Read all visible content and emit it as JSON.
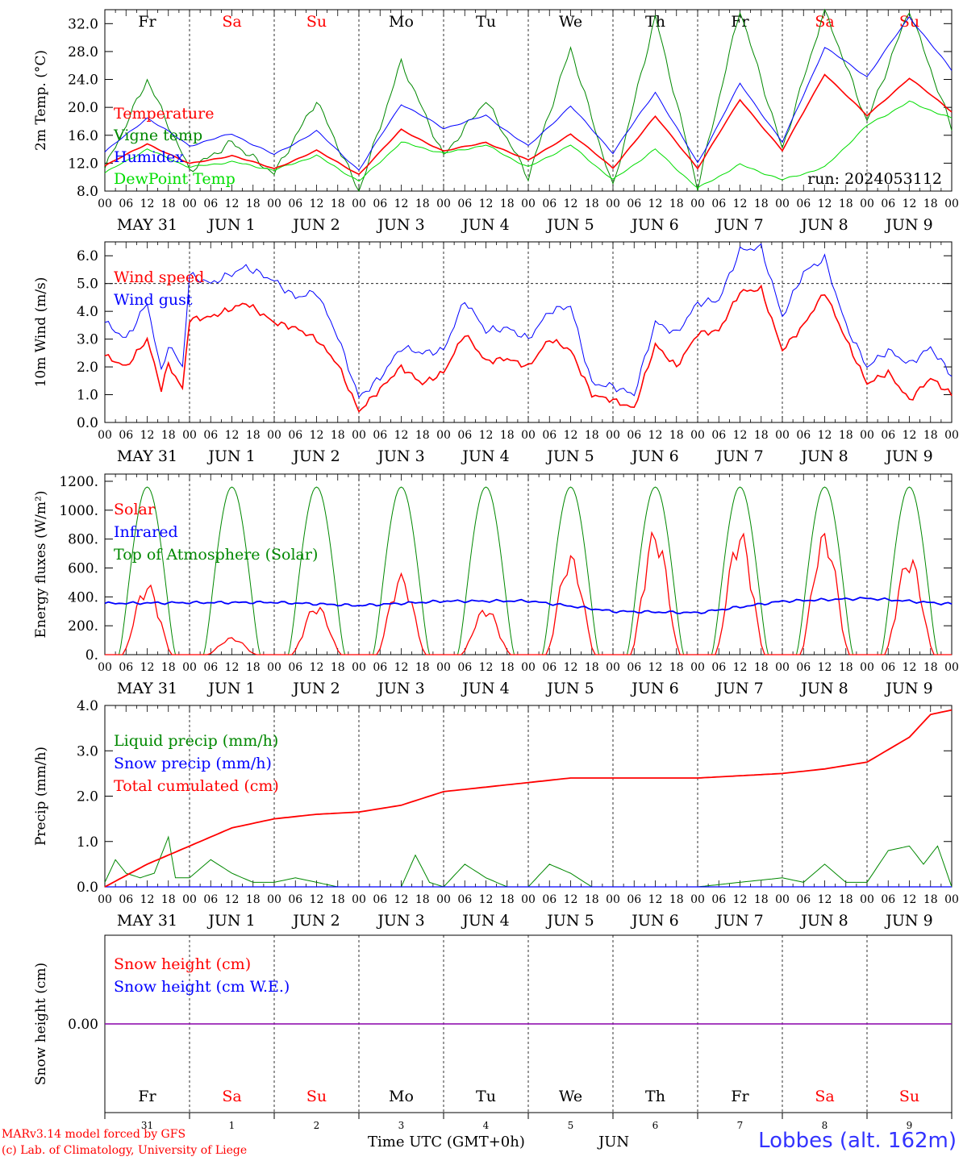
{
  "meta": {
    "model_credit": "MARv3.14 model forced by GFS",
    "copyright": "(c) Lab. of Climatology, University of Liege",
    "time_axis_label": "Time UTC (GMT+0h)",
    "month_label": "JUN",
    "station": "Lobbes (alt. 162m)",
    "run_label": "run: 2024053112"
  },
  "colors": {
    "red": "#ff0000",
    "green": "#008800",
    "blue": "#0000ff",
    "lightgreen": "#00dd00",
    "purple": "#8800aa",
    "weekend": "#ff0000",
    "weekday": "#000000"
  },
  "days": [
    {
      "abbr": "Fr",
      "date": "MAY 31",
      "num": "31",
      "weekend": false
    },
    {
      "abbr": "Sa",
      "date": "JUN  1",
      "num": "1",
      "weekend": true
    },
    {
      "abbr": "Su",
      "date": "JUN  2",
      "num": "2",
      "weekend": true
    },
    {
      "abbr": "Mo",
      "date": "JUN  3",
      "num": "3",
      "weekend": false
    },
    {
      "abbr": "Tu",
      "date": "JUN  4",
      "num": "4",
      "weekend": false
    },
    {
      "abbr": "We",
      "date": "JUN  5",
      "num": "5",
      "weekend": false
    },
    {
      "abbr": "Th",
      "date": "JUN  6",
      "num": "6",
      "weekend": false
    },
    {
      "abbr": "Fr",
      "date": "JUN  7",
      "num": "7",
      "weekend": false
    },
    {
      "abbr": "Sa",
      "date": "JUN  8",
      "num": "8",
      "weekend": true
    },
    {
      "abbr": "Su",
      "date": "JUN  9",
      "num": "9",
      "weekend": true
    }
  ],
  "hour_ticks": [
    "00",
    "06",
    "12",
    "18"
  ],
  "chart_data": [
    {
      "type": "line",
      "ylabel": "2m Temp. (°C)",
      "ylim": [
        8,
        34
      ],
      "yticks": [
        "8.0",
        "12.0",
        "16.0",
        "20.0",
        "24.0",
        "28.0",
        "32.0"
      ],
      "x_unit": "hours since MAY 31 00 UTC",
      "series": [
        {
          "name": "Temperature",
          "color": "red",
          "x": [
            0,
            12,
            24,
            36,
            48,
            60,
            72,
            84,
            96,
            108,
            120,
            132,
            144,
            156,
            168,
            180,
            192,
            204,
            216,
            228,
            240
          ],
          "y": [
            11.6,
            14.8,
            11.9,
            13.1,
            11.2,
            13.8,
            10.4,
            16.8,
            13.7,
            15.0,
            12.4,
            16.2,
            11.3,
            18.7,
            11.3,
            21.1,
            13.8,
            24.8,
            18.8,
            24.2,
            19.4
          ]
        },
        {
          "name": "Vigne temp",
          "color": "green",
          "x": [
            0,
            12,
            24,
            36,
            48,
            60,
            72,
            84,
            96,
            108,
            120,
            132,
            144,
            156,
            168,
            180,
            192,
            204,
            216,
            228,
            240
          ],
          "y": [
            11.2,
            24.0,
            11.0,
            15.0,
            10.5,
            21.0,
            8.0,
            26.5,
            13.0,
            21.0,
            10.0,
            28.5,
            8.5,
            33.0,
            8.5,
            34.0,
            14.0,
            34.0,
            18.0,
            34.0,
            17.0
          ]
        },
        {
          "name": "Humidex",
          "color": "blue",
          "x": [
            0,
            12,
            24,
            36,
            48,
            60,
            72,
            84,
            96,
            108,
            120,
            132,
            144,
            156,
            168,
            180,
            192,
            204,
            216,
            228,
            240
          ],
          "y": [
            13.6,
            18.5,
            14.5,
            16.2,
            13.2,
            16.6,
            11.0,
            20.5,
            17.0,
            18.8,
            14.4,
            20.2,
            13.5,
            22.2,
            12.0,
            23.4,
            15.0,
            28.6,
            24.4,
            33.0,
            25.3
          ]
        },
        {
          "name": "DewPoint Temp",
          "color": "lightgreen",
          "x": [
            0,
            12,
            24,
            36,
            48,
            60,
            72,
            84,
            96,
            108,
            120,
            132,
            144,
            156,
            168,
            180,
            192,
            204,
            216,
            228,
            240
          ],
          "y": [
            10.6,
            14.0,
            11.4,
            12.2,
            11.0,
            13.1,
            9.4,
            15.0,
            13.4,
            14.6,
            11.4,
            14.6,
            9.6,
            14.0,
            8.4,
            11.8,
            9.6,
            11.4,
            17.4,
            20.8,
            18.4
          ]
        }
      ]
    },
    {
      "type": "line",
      "ylabel": "10m Wind (m/s)",
      "ylim": [
        0,
        6.5
      ],
      "yticks": [
        "0.0",
        "1.0",
        "2.0",
        "3.0",
        "4.0",
        "5.0",
        "6.0"
      ],
      "x_unit": "hours since MAY 31 00 UTC",
      "series": [
        {
          "name": "Wind speed",
          "color": "red",
          "x": [
            0,
            6,
            12,
            16,
            18,
            22,
            24,
            30,
            40,
            48,
            54,
            60,
            66,
            72,
            78,
            84,
            90,
            96,
            102,
            108,
            114,
            120,
            126,
            132,
            138,
            144,
            150,
            156,
            162,
            168,
            174,
            180,
            186,
            192,
            198,
            204,
            210,
            216,
            222,
            228,
            234,
            240
          ],
          "y": [
            2.4,
            2.0,
            3.0,
            1.2,
            2.1,
            1.2,
            3.7,
            3.8,
            4.3,
            3.6,
            3.4,
            3.0,
            2.1,
            0.4,
            1.2,
            2.0,
            1.4,
            1.8,
            3.2,
            2.2,
            2.3,
            2.0,
            3.0,
            2.6,
            1.0,
            0.8,
            0.5,
            2.8,
            2.0,
            3.2,
            3.3,
            4.7,
            4.8,
            2.6,
            3.5,
            4.7,
            3.0,
            1.4,
            1.8,
            0.8,
            1.6,
            1.0
          ]
        },
        {
          "name": "Wind gust",
          "color": "blue",
          "x": [
            0,
            6,
            12,
            16,
            18,
            22,
            24,
            30,
            40,
            48,
            54,
            60,
            66,
            72,
            78,
            84,
            90,
            96,
            102,
            108,
            114,
            120,
            126,
            132,
            138,
            144,
            150,
            156,
            162,
            168,
            174,
            180,
            186,
            192,
            198,
            204,
            210,
            216,
            222,
            228,
            234,
            240
          ],
          "y": [
            3.6,
            3.0,
            4.3,
            1.8,
            2.8,
            2.0,
            5.3,
            5.0,
            5.6,
            5.1,
            4.5,
            4.7,
            3.1,
            0.9,
            1.6,
            2.7,
            2.5,
            2.6,
            4.4,
            3.3,
            3.4,
            3.0,
            4.0,
            4.2,
            1.4,
            1.3,
            1.0,
            3.6,
            3.2,
            4.3,
            4.4,
            6.2,
            6.3,
            3.8,
            5.4,
            5.9,
            3.5,
            2.0,
            2.6,
            2.1,
            2.7,
            1.7
          ]
        }
      ],
      "ref_line": 5.0
    },
    {
      "type": "line",
      "ylabel": "Energy fluxes (W/m²)",
      "ylim": [
        0,
        1250
      ],
      "yticks": [
        "0.",
        "200.",
        "400.",
        "600.",
        "800.",
        "1000.",
        "1200."
      ],
      "x_unit": "hours since MAY 31 00 UTC",
      "toa_peak": 1160,
      "series": [
        {
          "name": "Solar",
          "color": "red",
          "daily_peaks": [
            500,
            120,
            350,
            560,
            330,
            700,
            880,
            870,
            860,
            700
          ]
        },
        {
          "name": "Infrared",
          "color": "blue",
          "x": [
            0,
            24,
            48,
            72,
            96,
            120,
            144,
            168,
            192,
            216,
            240
          ],
          "y": [
            355,
            360,
            362,
            340,
            370,
            372,
            300,
            290,
            370,
            390,
            350
          ]
        },
        {
          "name": "Top of Atmosphere (Solar)",
          "color": "green"
        }
      ]
    },
    {
      "type": "line",
      "ylabel": "Precip (mm/h)",
      "ylim": [
        0,
        4.0
      ],
      "yticks": [
        "0.0",
        "1.0",
        "2.0",
        "3.0",
        "4.0"
      ],
      "x_unit": "hours since MAY 31 00 UTC",
      "series": [
        {
          "name": "Liquid precip (mm/h)",
          "color": "green",
          "x": [
            0,
            3,
            6,
            10,
            14,
            18,
            20,
            24,
            30,
            36,
            42,
            48,
            54,
            60,
            66,
            72,
            84,
            88,
            92,
            96,
            102,
            108,
            114,
            120,
            126,
            132,
            138,
            144,
            168,
            192,
            198,
            204,
            210,
            216,
            222,
            228,
            232,
            234,
            236,
            240
          ],
          "y": [
            0.1,
            0.6,
            0.3,
            0.2,
            0.3,
            1.1,
            0.2,
            0.2,
            0.6,
            0.3,
            0.1,
            0.1,
            0.2,
            0.1,
            0.0,
            0.0,
            0.0,
            0.7,
            0.1,
            0.0,
            0.5,
            0.2,
            0.0,
            0.0,
            0.5,
            0.3,
            0.0,
            0.0,
            0.0,
            0.2,
            0.1,
            0.5,
            0.1,
            0.1,
            0.8,
            0.9,
            0.5,
            0.7,
            0.9,
            0.0
          ]
        },
        {
          "name": "Snow precip (mm/h)",
          "color": "blue",
          "x": [
            0,
            240
          ],
          "y": [
            0,
            0
          ]
        },
        {
          "name": "Total cumulated (cm)",
          "color": "red",
          "x": [
            0,
            12,
            24,
            36,
            48,
            60,
            72,
            84,
            96,
            108,
            120,
            132,
            144,
            156,
            168,
            180,
            192,
            204,
            216,
            228,
            234,
            240
          ],
          "y": [
            0.0,
            0.5,
            0.9,
            1.3,
            1.5,
            1.6,
            1.65,
            1.8,
            2.1,
            2.2,
            2.3,
            2.4,
            2.4,
            2.4,
            2.4,
            2.45,
            2.5,
            2.6,
            2.75,
            3.3,
            3.8,
            3.9
          ]
        }
      ]
    },
    {
      "type": "line",
      "ylabel": "Snow height (cm)",
      "ylim": [
        -1,
        1
      ],
      "yticks": [
        "0.00"
      ],
      "x_unit": "hours since MAY 31 00 UTC",
      "series": [
        {
          "name": "Snow height (cm)",
          "color": "red",
          "x": [
            0,
            240
          ],
          "y": [
            0,
            0
          ]
        },
        {
          "name": "Snow height (cm W.E.)",
          "color": "blue",
          "x": [
            0,
            240
          ],
          "y": [
            0,
            0
          ]
        }
      ]
    }
  ]
}
